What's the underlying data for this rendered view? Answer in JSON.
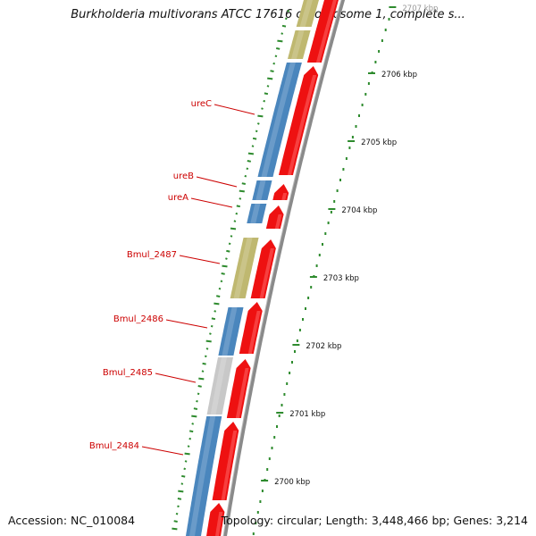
{
  "title": "Burkholderia multivorans ATCC 17616 chromosome 1, complete s...",
  "accession": "Accession: NC_010084",
  "stats": "Topology: circular; Length: 3,448,466 bp; Genes: 3,214",
  "colors": {
    "backbone": "#8a8a8a",
    "forward": "#ee1111",
    "reverse": "#4a86bd",
    "yellow": "#bfb870",
    "gray": "#c8c8c8",
    "label": "#cc0000",
    "tick": "#2e8b2e",
    "label_line": "#cc0000"
  },
  "scale_ticks": [
    {
      "label": "2700 kbp"
    },
    {
      "label": "2701 kbp"
    },
    {
      "label": "2702 kbp"
    },
    {
      "label": "2703 kbp"
    },
    {
      "label": "2704 kbp"
    },
    {
      "label": "2705 kbp"
    },
    {
      "label": "2706 kbp"
    },
    {
      "label": "2707 kbp"
    }
  ],
  "gene_labels": [
    {
      "name": "ureC"
    },
    {
      "name": "ureB"
    },
    {
      "name": "ureA"
    },
    {
      "name": "Bmul_2487"
    },
    {
      "name": "Bmul_2486"
    },
    {
      "name": "Bmul_2485"
    },
    {
      "name": "Bmul_2484"
    }
  ]
}
